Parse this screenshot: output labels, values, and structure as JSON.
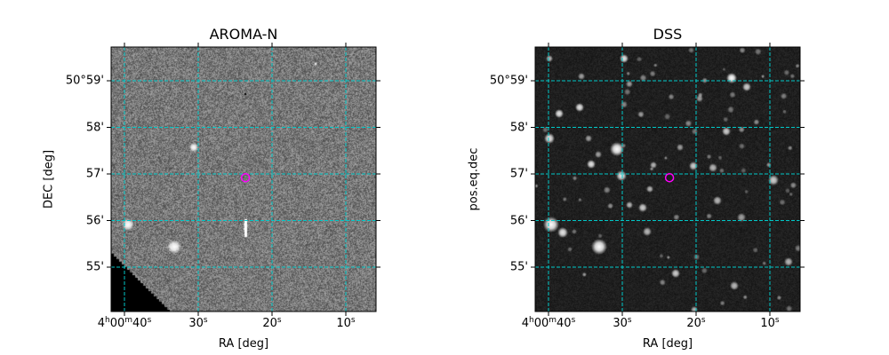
{
  "chart_data": [
    {
      "type": "image",
      "title": "AROMA-N",
      "xlabel": "RA [deg]",
      "ylabel": "DEC [deg]",
      "colormap": "gray",
      "grid": true,
      "grid_color": "#00c8c8",
      "x_ticks": [
        {
          "h": "4",
          "m": "00",
          "s": "40"
        },
        {
          "s": "30"
        },
        {
          "s": "20"
        },
        {
          "s": "10"
        }
      ],
      "x_tick_seconds": [
        40,
        30,
        20,
        10
      ],
      "y_ticks": [
        "50°59'",
        "58'",
        "57'",
        "56'",
        "55'"
      ],
      "y_tick_arcmin": [
        59,
        58,
        57,
        56,
        55
      ],
      "marker": {
        "ra_s": 23.6,
        "dec_arcmin": 56.92,
        "color": "#ff00ff",
        "shape": "circle"
      }
    },
    {
      "type": "image",
      "title": "DSS",
      "xlabel": "RA [deg]",
      "ylabel": "pos.eq.dec",
      "colormap": "gray",
      "grid": true,
      "grid_color": "#00c8c8",
      "x_ticks": [
        {
          "h": "4",
          "m": "00",
          "s": "40"
        },
        {
          "s": "30"
        },
        {
          "s": "20"
        },
        {
          "s": "10"
        }
      ],
      "x_tick_seconds": [
        40,
        30,
        20,
        10
      ],
      "y_ticks": [
        "50°59'",
        "58'",
        "57'",
        "56'",
        "55'"
      ],
      "y_tick_arcmin": [
        59,
        58,
        57,
        56,
        55
      ],
      "marker": {
        "ra_s": 23.6,
        "dec_arcmin": 56.92,
        "color": "#ff00ff",
        "shape": "circle"
      }
    }
  ]
}
